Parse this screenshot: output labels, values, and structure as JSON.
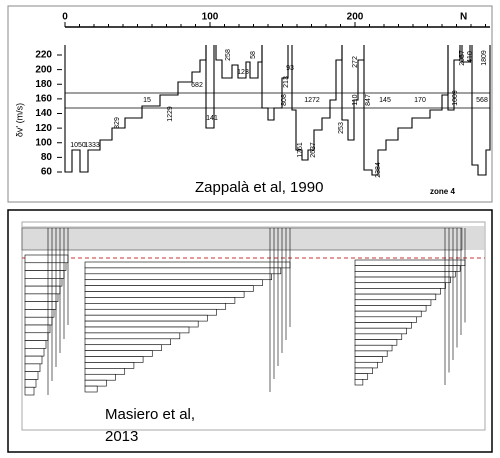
{
  "top": {
    "x_ticks": [
      0,
      100,
      200
    ],
    "x_axis_label": "N",
    "y_ticks": [
      220,
      200,
      180,
      160,
      140,
      120,
      100,
      80,
      60
    ],
    "y_axis_label": "δv' (m/s)",
    "family_labels": [
      "1050",
      "1333",
      "15",
      "329",
      "1229",
      "682",
      "141",
      "258",
      "123",
      "58",
      "213",
      "93",
      "808",
      "1272",
      "1761",
      "2637",
      "253",
      "110",
      "272",
      "847",
      "145",
      "170",
      "2384",
      "1009",
      "2057",
      "410",
      "568",
      "1809"
    ],
    "caption": "Zappalà et al, 1990",
    "zone_label": "zone 4"
  },
  "bottom": {
    "caption_lines": [
      "Masiero et al,",
      "2013"
    ]
  }
}
